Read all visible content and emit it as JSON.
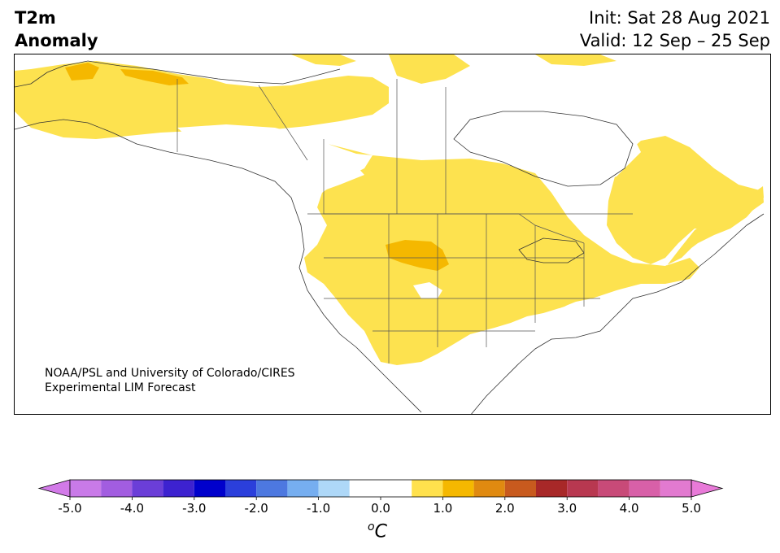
{
  "title": {
    "left_line1": "T2m",
    "left_line2": "Anomaly",
    "init": "Init: Sat 28 Aug 2021",
    "valid": "Valid: 12 Sep – 25 Sep"
  },
  "credit": {
    "line1": "NOAA/PSL and University of Colorado/CIRES",
    "line2": "Experimental LIM Forecast"
  },
  "colorbar": {
    "unit_symbol": "o",
    "unit_letter": "C",
    "ticks": [
      "-5.0",
      "-4.0",
      "-3.0",
      "-2.0",
      "-1.0",
      "0.0",
      "1.0",
      "2.0",
      "3.0",
      "4.0",
      "5.0"
    ],
    "tick_values": [
      -5,
      -4,
      -3,
      -2,
      -1,
      0,
      1,
      2,
      3,
      4,
      5
    ],
    "extend_low_color": "#d27ae8",
    "extend_high_color": "#e87ad8",
    "bins": [
      {
        "from": -5.0,
        "to": -4.5,
        "color": "#c97ae8"
      },
      {
        "from": -4.5,
        "to": -4.0,
        "color": "#a25de0"
      },
      {
        "from": -4.0,
        "to": -3.5,
        "color": "#6b3ed8"
      },
      {
        "from": -3.5,
        "to": -3.0,
        "color": "#3d22d0"
      },
      {
        "from": -3.0,
        "to": -2.5,
        "color": "#0000cc"
      },
      {
        "from": -2.5,
        "to": -2.0,
        "color": "#2b3fdb"
      },
      {
        "from": -2.0,
        "to": -1.5,
        "color": "#4d78e0"
      },
      {
        "from": -1.5,
        "to": -1.0,
        "color": "#76aef0"
      },
      {
        "from": -1.0,
        "to": -0.5,
        "color": "#aed8f8"
      },
      {
        "from": -0.5,
        "to": 0.5,
        "color": "#ffffff"
      },
      {
        "from": 0.5,
        "to": 1.0,
        "color": "#ffe14d"
      },
      {
        "from": 1.0,
        "to": 1.5,
        "color": "#f5b800"
      },
      {
        "from": 1.5,
        "to": 2.0,
        "color": "#e08a10"
      },
      {
        "from": 2.0,
        "to": 2.5,
        "color": "#c85a1e"
      },
      {
        "from": 2.5,
        "to": 3.0,
        "color": "#a82828"
      },
      {
        "from": 3.0,
        "to": 3.5,
        "color": "#b83850"
      },
      {
        "from": 3.5,
        "to": 4.0,
        "color": "#c84a78"
      },
      {
        "from": 4.0,
        "to": 4.5,
        "color": "#d860a8"
      },
      {
        "from": 4.5,
        "to": 5.0,
        "color": "#e27ad0"
      }
    ]
  },
  "map": {
    "region": "North America",
    "anomaly_colors": {
      "light": "#fde24f",
      "dark": "#f5b800"
    }
  }
}
